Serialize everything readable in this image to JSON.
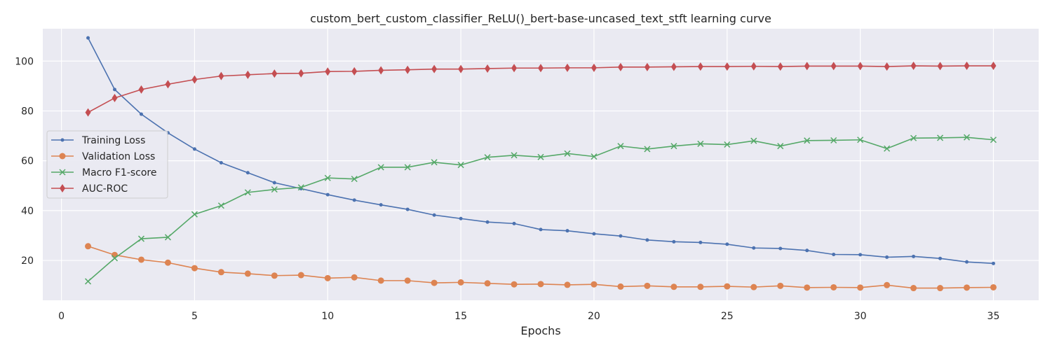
{
  "chart_data": {
    "type": "line",
    "title": "custom_bert_custom_classifier_ReLU()_bert-base-uncased_text_stft learning curve",
    "xlabel": "Epochs",
    "ylabel": "",
    "xlim": [
      -0.7,
      36.7
    ],
    "ylim": [
      4,
      113
    ],
    "xticks": [
      0,
      5,
      10,
      15,
      20,
      25,
      30,
      35
    ],
    "yticks": [
      20,
      40,
      60,
      80,
      100
    ],
    "grid": true,
    "legend_position": "center-left",
    "x": [
      1,
      2,
      3,
      4,
      5,
      6,
      7,
      8,
      9,
      10,
      11,
      12,
      13,
      14,
      15,
      16,
      17,
      18,
      19,
      20,
      21,
      22,
      23,
      24,
      25,
      26,
      27,
      28,
      29,
      30,
      31,
      32,
      33,
      34,
      35
    ],
    "series": [
      {
        "name": "Training Loss",
        "color": "#4C72B0",
        "marker": "dot",
        "values": [
          109.3,
          88.6,
          78.7,
          71.2,
          64.7,
          59.2,
          55.2,
          51.2,
          48.8,
          46.4,
          44.2,
          42.3,
          40.5,
          38.2,
          36.8,
          35.4,
          34.8,
          32.4,
          31.9,
          30.7,
          29.8,
          28.2,
          27.5,
          27.2,
          26.5,
          25.0,
          24.8,
          24.0,
          22.4,
          22.3,
          21.3,
          21.6,
          20.8,
          19.4,
          18.8
        ]
      },
      {
        "name": "Validation Loss",
        "color": "#DD8452",
        "marker": "circle",
        "values": [
          25.7,
          22.2,
          20.3,
          19.1,
          16.9,
          15.3,
          14.7,
          13.9,
          14.1,
          12.9,
          13.2,
          11.9,
          11.9,
          11.0,
          11.2,
          10.8,
          10.4,
          10.5,
          10.2,
          10.4,
          9.5,
          9.8,
          9.4,
          9.4,
          9.6,
          9.3,
          9.8,
          9.1,
          9.2,
          9.1,
          10.1,
          8.9,
          8.9,
          9.1,
          9.2
        ]
      },
      {
        "name": "Macro F1-score",
        "color": "#55A868",
        "marker": "x",
        "values": [
          11.6,
          20.9,
          28.7,
          29.3,
          38.5,
          42.0,
          47.3,
          48.5,
          49.3,
          53.1,
          52.7,
          57.4,
          57.4,
          59.4,
          58.3,
          61.4,
          62.2,
          61.5,
          62.9,
          61.7,
          65.9,
          64.7,
          65.9,
          66.8,
          66.5,
          68.0,
          65.9,
          68.1,
          68.2,
          68.4,
          64.9,
          69.1,
          69.2,
          69.4,
          68.4
        ]
      },
      {
        "name": "AUC-ROC",
        "color": "#C44E52",
        "marker": "diamond",
        "values": [
          79.4,
          85.2,
          88.6,
          90.7,
          92.6,
          94.0,
          94.5,
          95.0,
          95.1,
          95.8,
          95.9,
          96.3,
          96.5,
          96.8,
          96.8,
          97.0,
          97.2,
          97.2,
          97.3,
          97.3,
          97.6,
          97.6,
          97.7,
          97.8,
          97.8,
          97.9,
          97.8,
          98.0,
          98.0,
          98.0,
          97.8,
          98.1,
          98.0,
          98.1,
          98.1
        ]
      }
    ]
  }
}
